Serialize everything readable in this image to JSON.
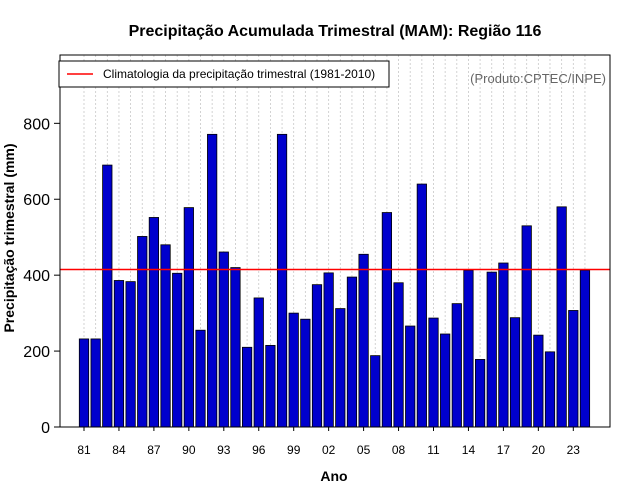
{
  "chart_data": {
    "type": "bar",
    "title": "Precipitação Acumulada Trimestral (MAM): Região 116",
    "xlabel": "Ano",
    "ylabel": "Precipitação trimestral (mm)",
    "ylim": [
      0,
      980
    ],
    "yticks": [
      0,
      200,
      400,
      600,
      800
    ],
    "grid": "vertical dotted",
    "x_tick_labels": [
      "81",
      "84",
      "87",
      "90",
      "93",
      "96",
      "99",
      "02",
      "05",
      "08",
      "11",
      "14",
      "17",
      "20",
      "23"
    ],
    "categories": [
      "1981",
      "1982",
      "1983",
      "1984",
      "1985",
      "1986",
      "1987",
      "1988",
      "1989",
      "1990",
      "1991",
      "1992",
      "1993",
      "1994",
      "1995",
      "1996",
      "1997",
      "1998",
      "1999",
      "2000",
      "2001",
      "2002",
      "2003",
      "2004",
      "2005",
      "2006",
      "2007",
      "2008",
      "2009",
      "2010",
      "2011",
      "2012",
      "2013",
      "2014",
      "2015",
      "2016",
      "2017",
      "2018",
      "2019",
      "2020",
      "2021",
      "2022",
      "2023",
      "2024"
    ],
    "values": [
      232,
      232,
      690,
      386,
      383,
      502,
      552,
      480,
      405,
      578,
      255,
      771,
      461,
      420,
      210,
      340,
      215,
      771,
      300,
      284,
      375,
      406,
      312,
      395,
      455,
      188,
      565,
      380,
      266,
      640,
      287,
      245,
      325,
      413,
      178,
      408,
      432,
      288,
      530,
      242,
      198,
      580,
      307,
      413
    ],
    "bar_color": "#0000CD",
    "climatology": {
      "value": 415,
      "color": "#FF0000",
      "label": "Climatologia da precipitação trimestral (1981-2010)"
    },
    "legend_position": "top-left",
    "credit": "(Produto:CPTEC/INPE)"
  }
}
